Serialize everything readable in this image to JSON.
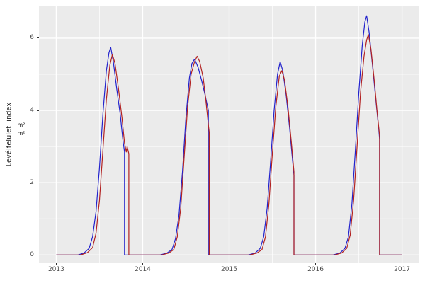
{
  "figure": {
    "y_axis_title": "Levélfelületi index",
    "unit_numerator": "m²",
    "unit_denominator": "m²"
  },
  "chart_data": {
    "type": "line",
    "title": "",
    "xlabel": "",
    "ylabel": "Levélfelületi index (m²/m²)",
    "grid": true,
    "legend": "none",
    "panel_bg": "#EBEBEB",
    "grid_color": "#FFFFFF",
    "tick_label_color": "#4d4d4d",
    "xlim": [
      2012.8,
      2017.2
    ],
    "ylim": [
      -0.23,
      6.9
    ],
    "x_ticks": [
      2013,
      2014,
      2015,
      2016,
      2017
    ],
    "y_ticks": [
      0,
      2,
      4,
      6
    ],
    "x_minor": [
      2013.5,
      2014.5,
      2015.5,
      2016.5
    ],
    "y_minor": [
      1,
      3,
      5
    ],
    "series": [
      {
        "name": "series-blue",
        "color": "#2222CC",
        "points": [
          [
            2013.0,
            0
          ],
          [
            2013.25,
            0
          ],
          [
            2013.32,
            0.05
          ],
          [
            2013.38,
            0.18
          ],
          [
            2013.42,
            0.5
          ],
          [
            2013.46,
            1.2
          ],
          [
            2013.5,
            2.4
          ],
          [
            2013.54,
            3.9
          ],
          [
            2013.58,
            5.1
          ],
          [
            2013.61,
            5.6
          ],
          [
            2013.63,
            5.75
          ],
          [
            2013.66,
            5.35
          ],
          [
            2013.7,
            4.6
          ],
          [
            2013.74,
            3.9
          ],
          [
            2013.77,
            3.2
          ],
          [
            2013.79,
            2.85
          ],
          [
            2013.79,
            0
          ],
          [
            2014.2,
            0
          ],
          [
            2014.28,
            0.05
          ],
          [
            2014.34,
            0.15
          ],
          [
            2014.38,
            0.45
          ],
          [
            2014.42,
            1.1
          ],
          [
            2014.46,
            2.3
          ],
          [
            2014.5,
            3.8
          ],
          [
            2014.54,
            4.9
          ],
          [
            2014.57,
            5.3
          ],
          [
            2014.6,
            5.42
          ],
          [
            2014.64,
            5.2
          ],
          [
            2014.68,
            4.85
          ],
          [
            2014.72,
            4.45
          ],
          [
            2014.76,
            4.0
          ],
          [
            2014.76,
            0
          ],
          [
            2015.22,
            0
          ],
          [
            2015.3,
            0.05
          ],
          [
            2015.36,
            0.18
          ],
          [
            2015.4,
            0.5
          ],
          [
            2015.44,
            1.3
          ],
          [
            2015.48,
            2.6
          ],
          [
            2015.52,
            4.0
          ],
          [
            2015.56,
            5.0
          ],
          [
            2015.59,
            5.35
          ],
          [
            2015.62,
            5.1
          ],
          [
            2015.66,
            4.4
          ],
          [
            2015.7,
            3.5
          ],
          [
            2015.73,
            2.7
          ],
          [
            2015.75,
            2.2
          ],
          [
            2015.75,
            0
          ],
          [
            2016.2,
            0
          ],
          [
            2016.28,
            0.05
          ],
          [
            2016.34,
            0.18
          ],
          [
            2016.38,
            0.5
          ],
          [
            2016.42,
            1.4
          ],
          [
            2016.46,
            2.9
          ],
          [
            2016.5,
            4.5
          ],
          [
            2016.54,
            5.8
          ],
          [
            2016.57,
            6.45
          ],
          [
            2016.59,
            6.62
          ],
          [
            2016.62,
            6.15
          ],
          [
            2016.66,
            5.2
          ],
          [
            2016.7,
            4.2
          ],
          [
            2016.73,
            3.5
          ],
          [
            2016.74,
            3.2
          ],
          [
            2016.74,
            0
          ],
          [
            2017.0,
            0
          ]
        ]
      },
      {
        "name": "series-red",
        "color": "#B22222",
        "points": [
          [
            2013.0,
            0
          ],
          [
            2013.28,
            0
          ],
          [
            2013.36,
            0.06
          ],
          [
            2013.42,
            0.2
          ],
          [
            2013.46,
            0.6
          ],
          [
            2013.5,
            1.5
          ],
          [
            2013.54,
            2.9
          ],
          [
            2013.58,
            4.3
          ],
          [
            2013.62,
            5.25
          ],
          [
            2013.65,
            5.55
          ],
          [
            2013.68,
            5.3
          ],
          [
            2013.72,
            4.6
          ],
          [
            2013.76,
            3.8
          ],
          [
            2013.79,
            3.1
          ],
          [
            2013.81,
            2.85
          ],
          [
            2013.82,
            3.0
          ],
          [
            2013.84,
            2.8
          ],
          [
            2013.84,
            0
          ],
          [
            2014.22,
            0
          ],
          [
            2014.3,
            0.05
          ],
          [
            2014.36,
            0.15
          ],
          [
            2014.4,
            0.5
          ],
          [
            2014.44,
            1.3
          ],
          [
            2014.48,
            2.7
          ],
          [
            2014.52,
            4.1
          ],
          [
            2014.56,
            5.0
          ],
          [
            2014.6,
            5.35
          ],
          [
            2014.63,
            5.5
          ],
          [
            2014.66,
            5.35
          ],
          [
            2014.7,
            4.9
          ],
          [
            2014.73,
            4.3
          ],
          [
            2014.76,
            3.6
          ],
          [
            2014.77,
            3.4
          ],
          [
            2014.77,
            0
          ],
          [
            2015.24,
            0
          ],
          [
            2015.32,
            0.05
          ],
          [
            2015.38,
            0.15
          ],
          [
            2015.42,
            0.5
          ],
          [
            2015.46,
            1.4
          ],
          [
            2015.5,
            2.8
          ],
          [
            2015.54,
            4.1
          ],
          [
            2015.58,
            4.95
          ],
          [
            2015.61,
            5.1
          ],
          [
            2015.64,
            4.85
          ],
          [
            2015.68,
            4.1
          ],
          [
            2015.72,
            3.1
          ],
          [
            2015.75,
            2.3
          ],
          [
            2015.75,
            0
          ],
          [
            2016.22,
            0
          ],
          [
            2016.3,
            0.05
          ],
          [
            2016.36,
            0.18
          ],
          [
            2016.4,
            0.55
          ],
          [
            2016.44,
            1.5
          ],
          [
            2016.48,
            3.0
          ],
          [
            2016.52,
            4.5
          ],
          [
            2016.56,
            5.5
          ],
          [
            2016.59,
            5.95
          ],
          [
            2016.61,
            6.1
          ],
          [
            2016.64,
            5.7
          ],
          [
            2016.68,
            4.8
          ],
          [
            2016.71,
            4.0
          ],
          [
            2016.74,
            3.3
          ],
          [
            2016.74,
            0
          ],
          [
            2017.0,
            0
          ]
        ]
      }
    ]
  }
}
